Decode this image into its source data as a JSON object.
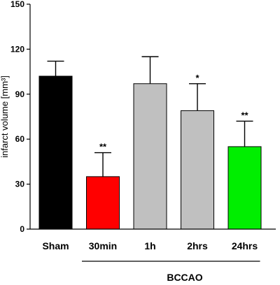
{
  "chart_data": {
    "type": "bar",
    "categories": [
      "Sham",
      "30min",
      "1h",
      "2hrs",
      "24hrs"
    ],
    "values": [
      102,
      35,
      97,
      79,
      55
    ],
    "errors": [
      10,
      16,
      18,
      18,
      17
    ],
    "significance": [
      "",
      "**",
      "",
      "*",
      "**"
    ],
    "bar_colors": [
      "#000000",
      "#ff0000",
      "#c0c0c0",
      "#c0c0c0",
      "#00ee00"
    ],
    "ylabel": "infarct volume [mm³]",
    "ylim": [
      0,
      150
    ],
    "yticks": [
      0,
      30,
      60,
      90,
      120,
      150
    ],
    "group_label": "BCCAO",
    "group_span": [
      "30min",
      "24hrs"
    ],
    "grid": false
  }
}
